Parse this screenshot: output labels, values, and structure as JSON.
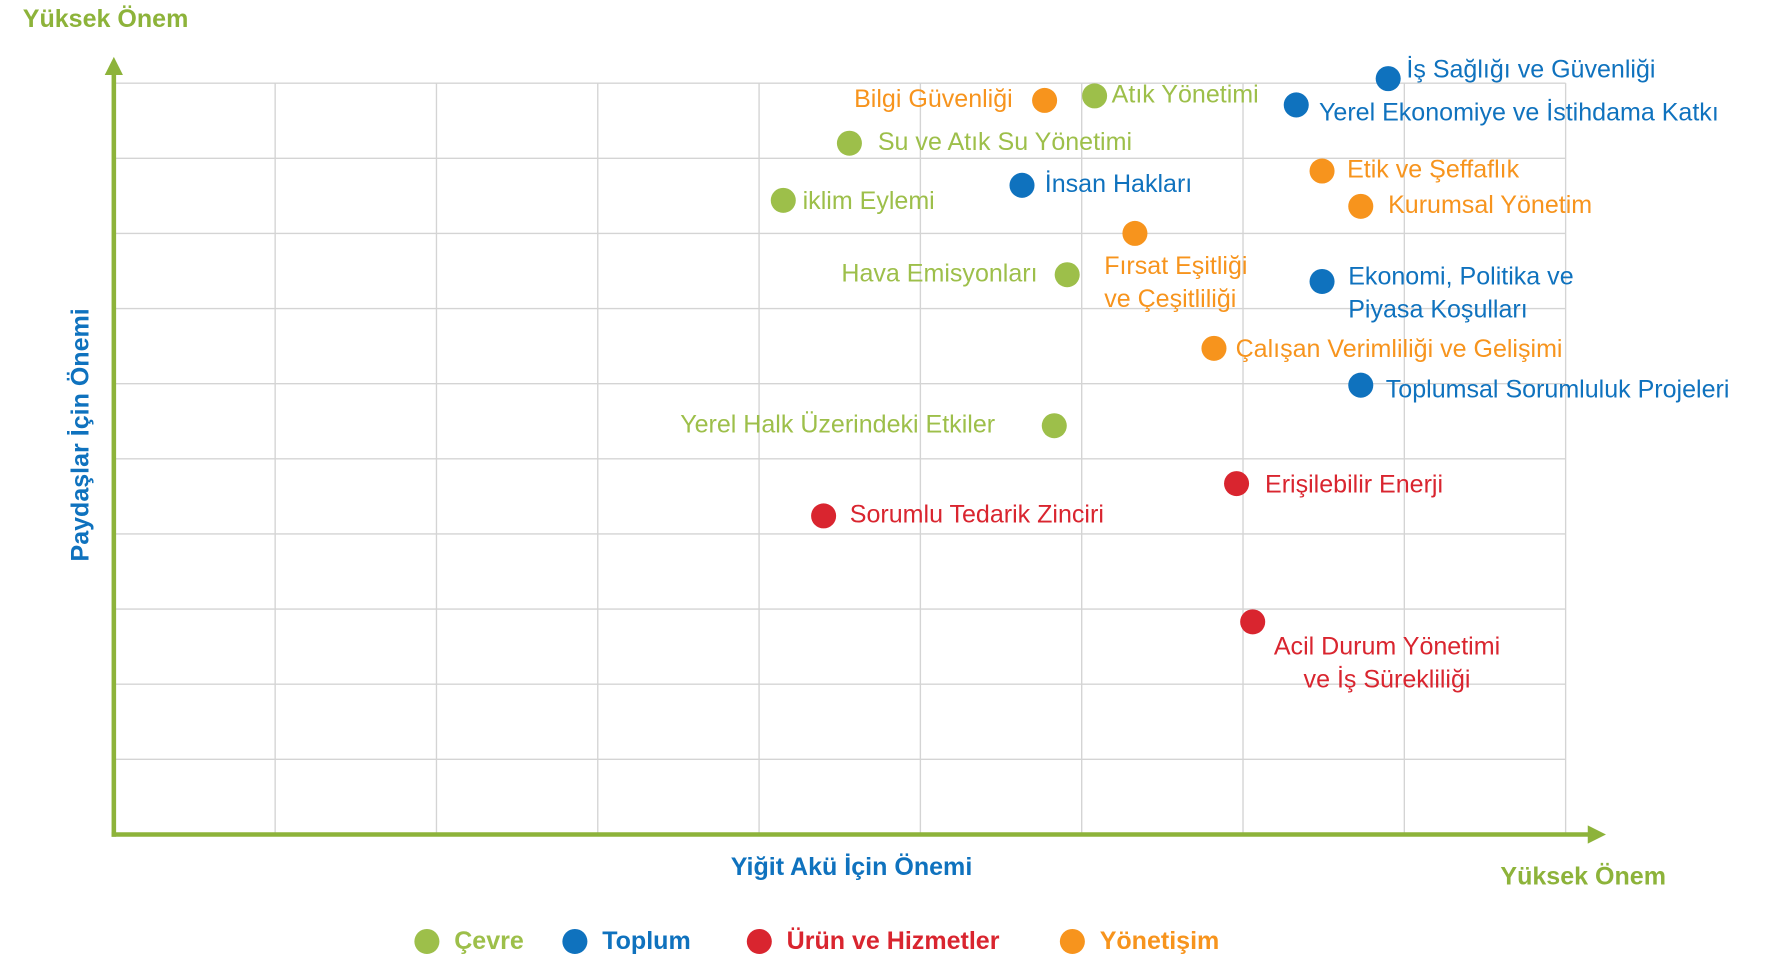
{
  "chart_data": {
    "type": "scatter",
    "y_high_label": "Yüksek Önem",
    "x_high_label": "Yüksek Önem",
    "xlabel": "Yiğit Akü  İçin Önemi",
    "ylabel": "Paydaşlar İçin Önemi",
    "xlim": [
      0,
      9.25
    ],
    "ylim": [
      0,
      10.35
    ],
    "xticks": [
      0,
      1,
      2,
      3,
      4,
      5,
      6,
      7,
      8,
      9
    ],
    "yticks": [
      0,
      1,
      2,
      3,
      4,
      5,
      6,
      7,
      8,
      9,
      10
    ],
    "grid": true,
    "axis_color": "#8db33a",
    "legend": "bottom",
    "series": [
      {
        "name": "Çevre",
        "color": "#9dbf4a",
        "x": [
          6.08,
          4.56,
          4.15,
          5.91,
          5.83
        ],
        "values": [
          9.83,
          9.2,
          8.44,
          7.45,
          5.44
        ],
        "labels": [
          [
            "Atık Yönetimi"
          ],
          [
            "Su ve Atık Su Yönetimi"
          ],
          [
            "iklim Eylemi"
          ],
          [
            "Hava Emisyonları"
          ],
          [
            "Yerel Halk Üzerindeki Etkiler"
          ]
        ]
      },
      {
        "name": "Toplum",
        "color": "#0f72be",
        "x": [
          7.9,
          7.33,
          5.63,
          7.49,
          7.73
        ],
        "values": [
          10.06,
          9.71,
          8.64,
          7.36,
          5.98
        ],
        "labels": [
          [
            "İş Sağlığı ve Güvenliği"
          ],
          [
            "Yerel Ekonomiye ve İstihdama Katkı"
          ],
          [
            "İnsan Hakları"
          ],
          [
            "Ekonomi, Politika ve",
            "Piyasa Koşulları"
          ],
          [
            "Toplumsal Sorumluluk Projeleri"
          ]
        ]
      },
      {
        "name": "Ürün ve Hizmetler",
        "color": "#d9252f",
        "x": [
          6.96,
          4.4,
          7.06
        ],
        "values": [
          4.67,
          4.24,
          2.83
        ],
        "labels": [
          [
            "Erişilebilir Enerji"
          ],
          [
            "Sorumlu Tedarik Zinciri"
          ],
          [
            "Acil Durum Yönetimi",
            "ve İş Sürekliliği"
          ]
        ]
      },
      {
        "name": "Yönetişim",
        "color": "#f7941d",
        "x": [
          5.77,
          7.49,
          7.73,
          6.33,
          6.82
        ],
        "values": [
          9.77,
          8.83,
          8.36,
          8.0,
          6.47
        ],
        "labels": [
          [
            "Bilgi Güvenliği"
          ],
          [
            "Etik ve Şeffaflık"
          ],
          [
            "Kurumsal Yönetim"
          ],
          [
            "Fırsat Eşitliği",
            "ve Çeşitliliği"
          ],
          [
            "Çalışan Verimliliği ve Gelişimi"
          ]
        ]
      }
    ]
  }
}
